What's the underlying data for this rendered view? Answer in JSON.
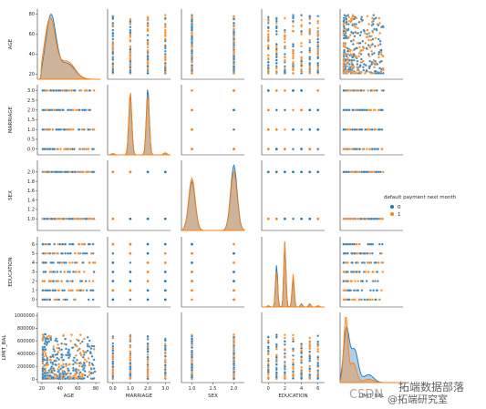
{
  "chart_data": {
    "type": "scatter",
    "subtype": "pairplot",
    "variables": [
      "AGE",
      "MARRIAGE",
      "SEX",
      "EDUCATION",
      "LIMIT_BAL"
    ],
    "ranges": {
      "AGE": [
        15,
        85
      ],
      "MARRIAGE": [
        -0.3,
        3.3
      ],
      "SEX": [
        0.75,
        2.25
      ],
      "EDUCATION": [
        -0.8,
        6.8
      ],
      "LIMIT_BAL": [
        -50000,
        1050000
      ]
    },
    "ticks": {
      "AGE": [
        20,
        40,
        60,
        80
      ],
      "MARRIAGE": [
        0.0,
        0.5,
        1.0,
        1.5,
        2.0,
        2.5,
        3.0
      ],
      "SEX": [
        1.0,
        1.2,
        1.4,
        1.6,
        1.8,
        2.0
      ],
      "EDUCATION": [
        0,
        1,
        2,
        3,
        4,
        5,
        6
      ],
      "LIMIT_BAL": [
        0,
        200000,
        400000,
        600000,
        800000,
        1000000
      ]
    },
    "xticks": {
      "AGE": [
        20,
        40,
        60,
        80
      ],
      "MARRIAGE": [
        0,
        1,
        2,
        3
      ],
      "SEX": [
        1.0,
        1.5,
        2.0
      ],
      "EDUCATION": [
        0,
        2,
        4,
        6
      ],
      "LIMIT_BAL": []
    },
    "value_sets": {
      "MARRIAGE": [
        0,
        1,
        2,
        3
      ],
      "SEX": [
        1,
        2
      ],
      "EDUCATION": [
        0,
        1,
        2,
        3,
        4,
        5,
        6
      ]
    },
    "age_range": [
      21,
      79
    ],
    "limit_range": [
      10000,
      1000000
    ],
    "legend": {
      "title": "default payment next month",
      "entries": [
        {
          "label": "0",
          "color": "#1f77b4"
        },
        {
          "label": "1",
          "color": "#ff7f0e"
        }
      ],
      "placement": "right"
    },
    "grid": false
  },
  "watermark": {
    "text1": "CSDN",
    "text2": "拓端数据部落",
    "text3": "@拓端研究室"
  }
}
